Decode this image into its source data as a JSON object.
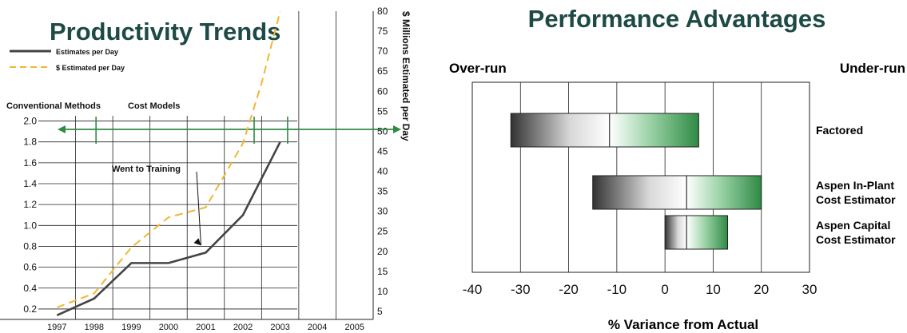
{
  "chart_data": [
    {
      "type": "line",
      "title": "Productivity Trends",
      "xlabel": "",
      "ylabel": "",
      "y2label": "$ Millions Estimated per Day",
      "categories": [
        "1997",
        "1998",
        "1999",
        "2000",
        "2001",
        "2002",
        "2003",
        "2004",
        "2005"
      ],
      "ylim": [
        0.1,
        2.05
      ],
      "y_ticks": [
        0.2,
        0.4,
        0.6,
        0.8,
        1.0,
        1.2,
        1.4,
        1.6,
        1.8,
        2.0
      ],
      "y_tick_labels": [
        "0.2",
        "0.4",
        "0.6",
        "0.8",
        "1.0",
        "1.2",
        "1.4",
        "1.6",
        "1.8",
        "2.0"
      ],
      "y2lim": [
        3,
        80
      ],
      "y2_ticks": [
        5,
        10,
        15,
        20,
        25,
        30,
        35,
        40,
        45,
        50,
        55,
        60,
        65,
        70,
        75,
        80
      ],
      "series": [
        {
          "name": "Estimates per Day",
          "axis": "left",
          "color": "#444444",
          "x": [
            0,
            1,
            2,
            3,
            4,
            5,
            6
          ],
          "values": [
            0.14,
            0.3,
            0.64,
            0.64,
            0.74,
            1.1,
            1.8
          ]
        },
        {
          "name": "$ Estimated per Day",
          "axis": "right",
          "color": "#f2b632",
          "x": [
            0,
            1,
            2,
            3,
            4,
            5,
            5.5,
            6
          ],
          "values": [
            6,
            9.5,
            21,
            28.5,
            31,
            47,
            62,
            80
          ]
        }
      ],
      "regions": [
        "Conventional Methods",
        "Cost Models"
      ],
      "region_boundaries_x": [
        1.05,
        5.3,
        6.2
      ],
      "annotation": {
        "text": "Went to Training",
        "x": 4.0,
        "y": 0.84
      },
      "legend": "top-left",
      "grid": true
    },
    {
      "type": "bar",
      "orientation": "horizontal",
      "title": "Performance Advantages",
      "xlabel": "% Variance from Actual",
      "xlim": [
        -40,
        30
      ],
      "x_ticks": [
        -40,
        -30,
        -20,
        -10,
        0,
        10,
        20,
        30
      ],
      "left_label": "Over-run",
      "right_label": "Under-run",
      "categories": [
        "Factored",
        "Aspen In-Plant Cost Estimator",
        "Aspen Capital Cost Estimator"
      ],
      "category_lines": [
        [
          "Factored"
        ],
        [
          "Aspen In-Plant",
          "Cost Estimator"
        ],
        [
          "Aspen Capital",
          "Cost Estimator"
        ]
      ],
      "ranges": [
        {
          "low": -32,
          "mid": -11.5,
          "high": 7
        },
        {
          "low": -15,
          "mid": 4.5,
          "high": 20
        },
        {
          "low": 0,
          "mid": 4.5,
          "high": 13
        }
      ],
      "colors": {
        "low": "#333333",
        "high": "#2f8a45"
      },
      "grid": true
    }
  ]
}
